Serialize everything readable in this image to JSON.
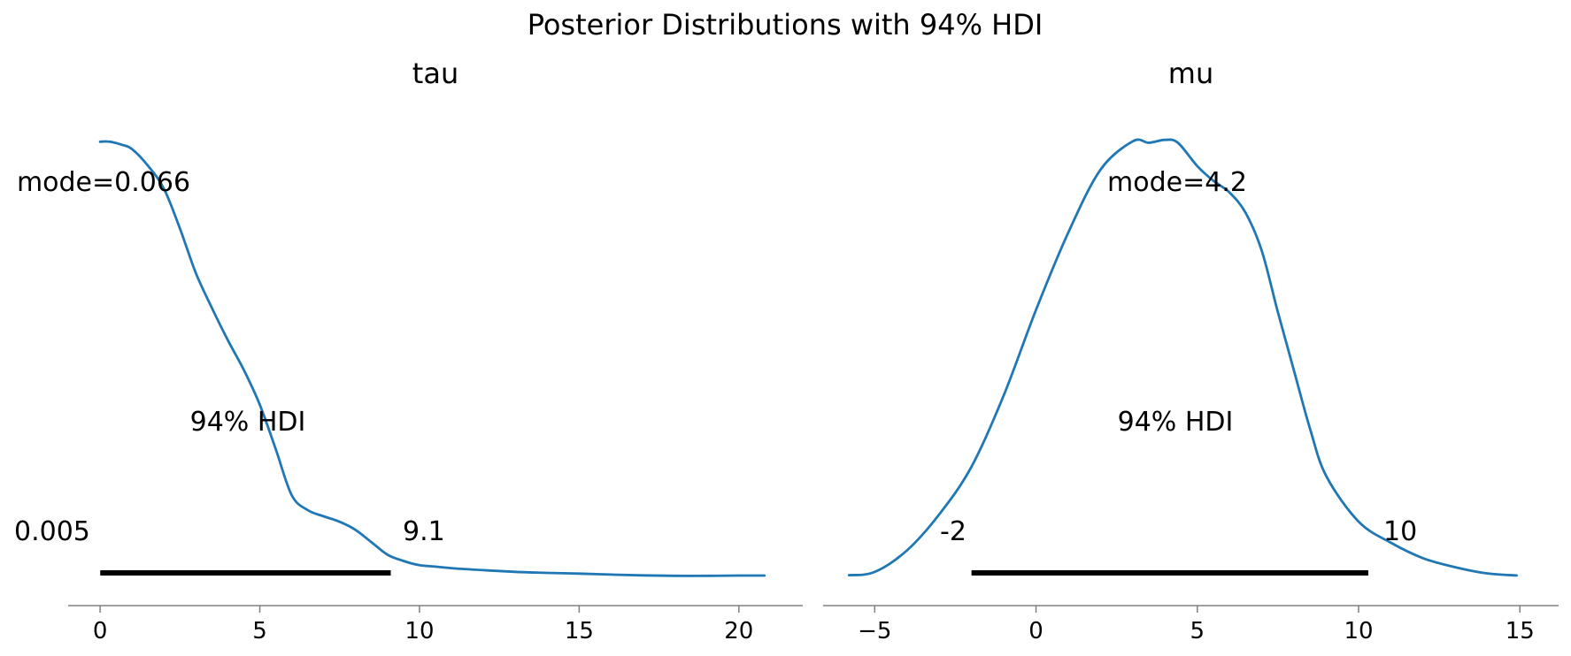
{
  "title": "Posterior Distributions with 94% HDI",
  "chart_data": [
    {
      "type": "line",
      "title": "tau",
      "xlim": [
        -1.0,
        22.0
      ],
      "ylim": [
        -0.012,
        0.184
      ],
      "xticks": [
        0,
        5,
        10,
        15,
        20
      ],
      "xtick_labels": [
        "0",
        "5",
        "10",
        "15",
        "20"
      ],
      "grid": false,
      "x": [
        0.0,
        0.3,
        0.7,
        1.0,
        1.5,
        2.0,
        2.5,
        3.0,
        3.5,
        4.0,
        4.5,
        5.0,
        5.5,
        6.0,
        6.5,
        7.0,
        7.5,
        8.0,
        8.5,
        9.0,
        9.5,
        10.0,
        10.5,
        11.0,
        12.0,
        13.0,
        14.0,
        15.0,
        16.0,
        17.0,
        18.0,
        19.0,
        20.0,
        20.8
      ],
      "y": [
        0.175,
        0.175,
        0.1737,
        0.172,
        0.1653,
        0.156,
        0.14,
        0.122,
        0.108,
        0.095,
        0.083,
        0.069,
        0.051,
        0.0325,
        0.0265,
        0.024,
        0.0218,
        0.0185,
        0.0135,
        0.0085,
        0.006,
        0.0043,
        0.0037,
        0.0031,
        0.0023,
        0.0016,
        0.0012,
        0.0009,
        0.0005,
        0.0002,
        0.0,
        0.0,
        0.0001,
        0.0001
      ],
      "mode_label": "mode=0.066",
      "hdi_label": "94% HDI",
      "hdi": [
        0.005,
        9.1
      ],
      "hdi_low_label": "0.005",
      "hdi_high_label": "9.1",
      "line_color": "#1f77b4",
      "hdi_color": "#000000"
    },
    {
      "type": "line",
      "title": "mu",
      "xlim": [
        -6.6,
        16.2
      ],
      "ylim": [
        -0.0102,
        0.156
      ],
      "xticks": [
        -5,
        0,
        5,
        10,
        15
      ],
      "xtick_labels": [
        "−5",
        "0",
        "5",
        "10",
        "15"
      ],
      "grid": false,
      "x": [
        -5.8,
        -5.0,
        -4.0,
        -3.0,
        -2.0,
        -1.0,
        0.0,
        1.0,
        2.0,
        3.0,
        3.5,
        4.0,
        4.4,
        5.0,
        5.5,
        6.0,
        6.5,
        7.0,
        7.5,
        8.0,
        8.5,
        9.0,
        10.0,
        11.0,
        12.0,
        13.0,
        14.0,
        14.9
      ],
      "y": [
        0.0002,
        0.0013,
        0.0087,
        0.021,
        0.0373,
        0.0617,
        0.0909,
        0.1173,
        0.1388,
        0.1485,
        0.148,
        0.149,
        0.148,
        0.14,
        0.135,
        0.131,
        0.124,
        0.111,
        0.09,
        0.07,
        0.05,
        0.034,
        0.0185,
        0.0113,
        0.006,
        0.0029,
        0.0008,
        0.0001
      ],
      "mode_label": "mode=4.2",
      "hdi_label": "94% HDI",
      "hdi": [
        -2.0,
        10.3
      ],
      "hdi_low_label": "-2",
      "hdi_high_label": "10",
      "line_color": "#1f77b4",
      "hdi_color": "#000000"
    }
  ]
}
